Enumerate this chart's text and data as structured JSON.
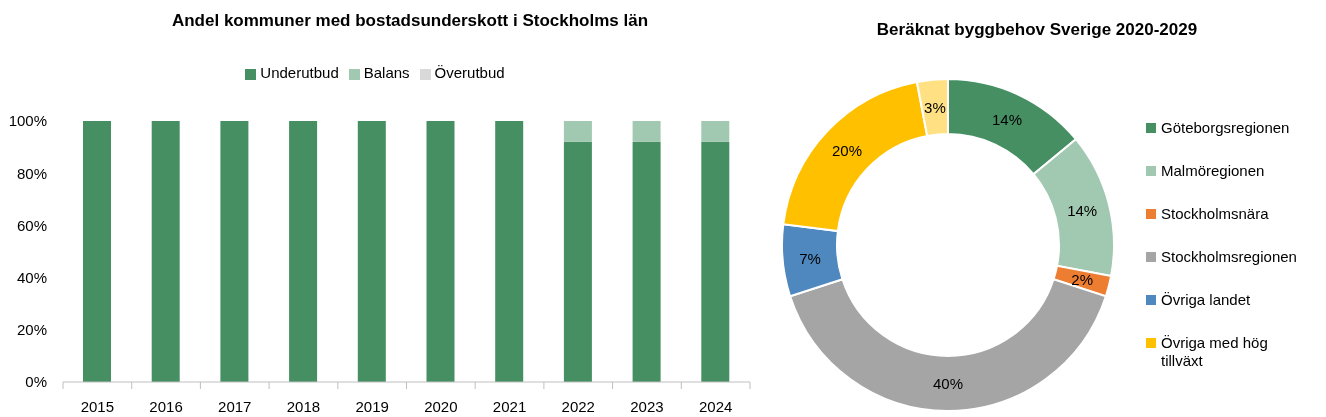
{
  "chart_data": [
    {
      "type": "bar",
      "title": "Andel kommuner med bostadsunderskott i Stockholms län",
      "categories": [
        "2015",
        "2016",
        "2017",
        "2018",
        "2019",
        "2020",
        "2021",
        "2022",
        "2023",
        "2024"
      ],
      "series": [
        {
          "name": "Underutbud",
          "color": "#458f63",
          "values": [
            100,
            100,
            100,
            100,
            100,
            100,
            100,
            92,
            92,
            92
          ]
        },
        {
          "name": "Balans",
          "color": "#a1c8b0",
          "values": [
            0,
            0,
            0,
            0,
            0,
            0,
            0,
            8,
            8,
            8
          ]
        },
        {
          "name": "Överutbud",
          "color": "#d9d9d9",
          "values": [
            0,
            0,
            0,
            0,
            0,
            0,
            0,
            0,
            0,
            0
          ]
        }
      ],
      "stacked": true,
      "ylim": [
        0,
        100
      ],
      "yticks": [
        {
          "value": 0,
          "label": "0%"
        },
        {
          "value": 20,
          "label": "20%"
        },
        {
          "value": 40,
          "label": "40%"
        },
        {
          "value": 60,
          "label": "60%"
        },
        {
          "value": 80,
          "label": "80%"
        },
        {
          "value": 100,
          "label": "100%"
        }
      ],
      "legend": "top"
    },
    {
      "type": "donut",
      "title": "Beräknat byggbehov Sverige 2020-2029",
      "categories": [
        "Göteborgsregionen",
        "Malmöregionen",
        "Stockholmsnära",
        "Stockholmsregionen",
        "Övriga landet",
        "Övriga med hög tillväxt",
        null
      ],
      "values": [
        14,
        14,
        2,
        40,
        7,
        20,
        3
      ],
      "colors": [
        "#458f63",
        "#a1c8b0",
        "#ed7d31",
        "#a5a5a5",
        "#4f88bf",
        "#ffc000",
        "#ffe083"
      ],
      "value_labels": [
        "14%",
        "14%",
        "2%",
        "40%",
        "7%",
        "20%",
        "3%"
      ],
      "legend": "right"
    }
  ]
}
